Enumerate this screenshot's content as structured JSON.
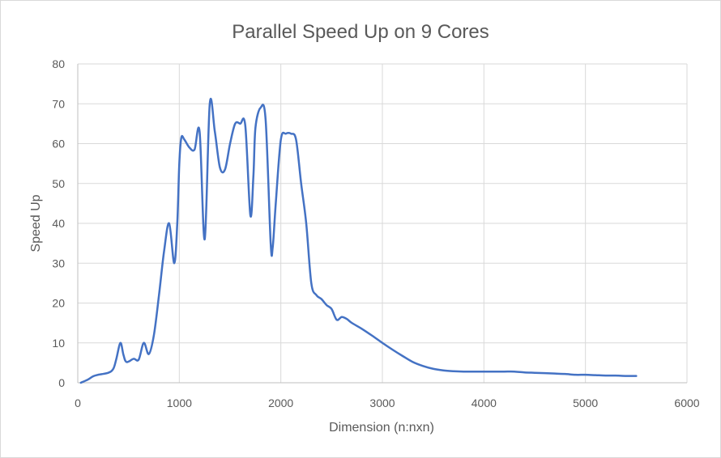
{
  "chart_data": {
    "type": "line",
    "title": "Parallel Speed Up on 9 Cores",
    "xlabel": "Dimension (n:nxn)",
    "ylabel": "Speed Up",
    "xlim": [
      0,
      6000
    ],
    "ylim": [
      0,
      80
    ],
    "x_ticks": [
      0,
      1000,
      2000,
      3000,
      4000,
      5000,
      6000
    ],
    "y_ticks": [
      0,
      10,
      20,
      30,
      40,
      50,
      60,
      70,
      80
    ],
    "grid": true,
    "legend": "none",
    "series": [
      {
        "color": "#4472c4",
        "x": [
          30,
          100,
          150,
          200,
          300,
          350,
          380,
          420,
          450,
          480,
          550,
          600,
          650,
          700,
          750,
          800,
          850,
          900,
          950,
          980,
          1000,
          1020,
          1050,
          1100,
          1150,
          1200,
          1250,
          1300,
          1350,
          1400,
          1450,
          1500,
          1550,
          1600,
          1650,
          1700,
          1730,
          1750,
          1800,
          1850,
          1900,
          1920,
          1950,
          2000,
          2050,
          2100,
          2150,
          2200,
          2250,
          2300,
          2350,
          2400,
          2450,
          2500,
          2550,
          2600,
          2650,
          2700,
          2800,
          2900,
          3000,
          3100,
          3200,
          3300,
          3400,
          3500,
          3600,
          3700,
          3800,
          3900,
          4000,
          4100,
          4200,
          4300,
          4400,
          4500,
          4600,
          4700,
          4800,
          4900,
          5000,
          5100,
          5200,
          5300,
          5400,
          5500
        ],
        "y": [
          0,
          0.8,
          1.6,
          2.0,
          2.5,
          3.5,
          6,
          10,
          7,
          5.2,
          6,
          5.8,
          10,
          7.2,
          12,
          22,
          33,
          40,
          30,
          40,
          55,
          61.5,
          61,
          59,
          58.5,
          63,
          36,
          70,
          63,
          54,
          53.5,
          60,
          65,
          65,
          64.5,
          42,
          52,
          64,
          69,
          66,
          35,
          34,
          45,
          61,
          62.5,
          62.5,
          61,
          50,
          40,
          25,
          22,
          21,
          19.5,
          18.5,
          15.8,
          16.5,
          16,
          15,
          13.5,
          11.8,
          10,
          8.3,
          6.7,
          5.2,
          4.2,
          3.5,
          3.1,
          2.9,
          2.8,
          2.8,
          2.8,
          2.8,
          2.8,
          2.8,
          2.6,
          2.5,
          2.4,
          2.3,
          2.2,
          2.0,
          2.0,
          1.9,
          1.8,
          1.8,
          1.7,
          1.7
        ]
      }
    ]
  }
}
